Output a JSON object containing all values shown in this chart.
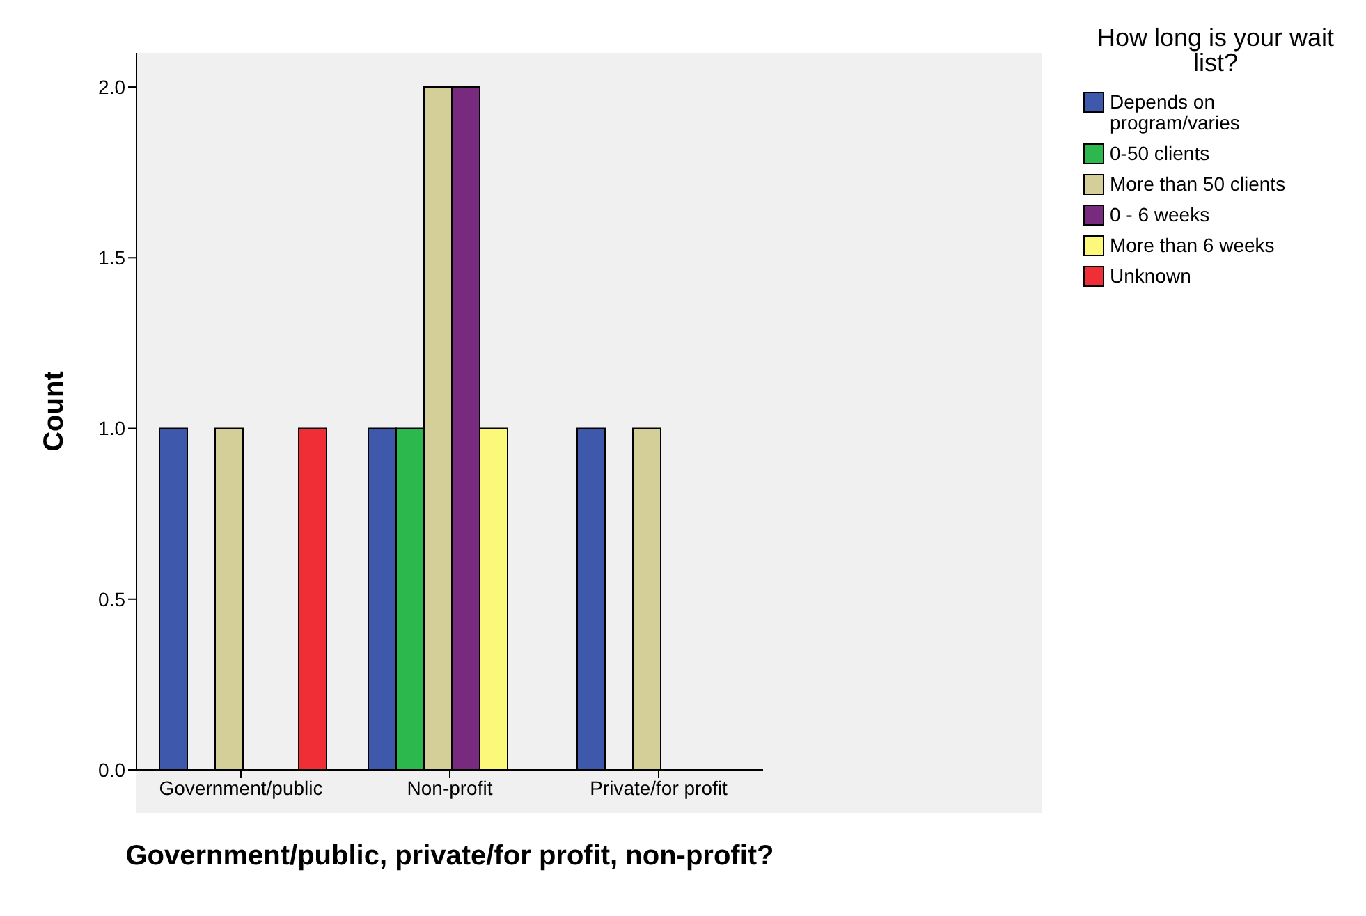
{
  "chart_data": {
    "type": "bar",
    "xlabel": "Government/public, private/for profit, non-profit?",
    "ylabel": "Count",
    "legend_title": "How long is your wait list?",
    "categories": [
      "Government/public",
      "Non-profit",
      "Private/for profit"
    ],
    "series": [
      {
        "name": "Depends on program/varies",
        "color": "#3e58ac",
        "values": [
          1,
          1,
          1
        ]
      },
      {
        "name": "0-50 clients",
        "color": "#2db84d",
        "values": [
          null,
          1,
          null
        ]
      },
      {
        "name": "More than 50 clients",
        "color": "#d4cf98",
        "values": [
          1,
          2,
          1
        ]
      },
      {
        "name": "0 - 6 weeks",
        "color": "#782a7e",
        "values": [
          null,
          2,
          null
        ]
      },
      {
        "name": "More than 6 weeks",
        "color": "#fbf87a",
        "values": [
          null,
          1,
          null
        ]
      },
      {
        "name": "Unknown",
        "color": "#ef2e36",
        "values": [
          1,
          null,
          null
        ]
      }
    ],
    "ylim": [
      0,
      2.1
    ],
    "yticks": [
      {
        "value": 0,
        "label": "0.0"
      },
      {
        "value": 0.5,
        "label": "0.5"
      },
      {
        "value": 1,
        "label": "1.0"
      },
      {
        "value": 1.5,
        "label": "1.5"
      },
      {
        "value": 2,
        "label": "2.0"
      }
    ],
    "grid": false,
    "legend": "top right"
  }
}
